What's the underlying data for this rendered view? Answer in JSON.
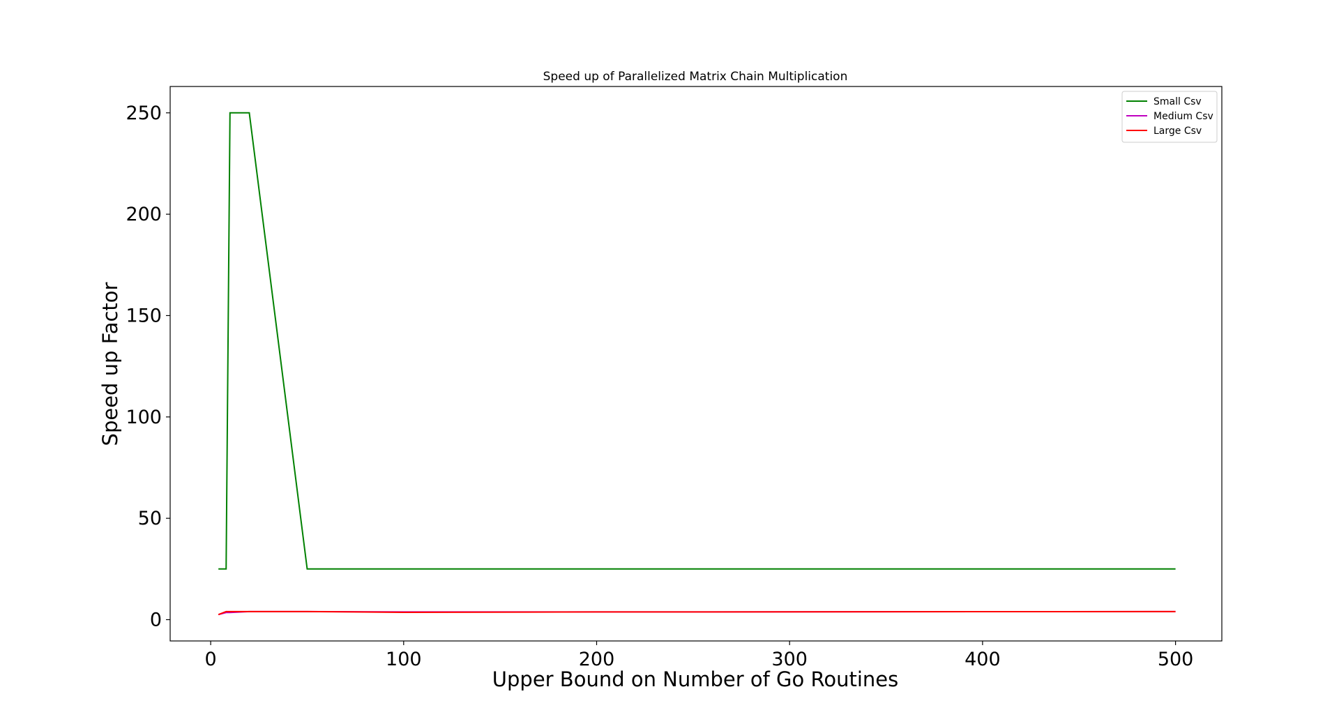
{
  "chart_data": {
    "type": "line",
    "title": "Speed up of Parallelized Matrix Chain Multiplication",
    "xlabel": "Upper Bound on Number of Go Routines",
    "ylabel": "Speed up Factor",
    "xlim": [
      -21,
      524
    ],
    "ylim": [
      -10.5,
      263
    ],
    "xticks": [
      0,
      100,
      200,
      300,
      400,
      500
    ],
    "xtick_labels": [
      "0",
      "100",
      "200",
      "300",
      "400",
      "500"
    ],
    "yticks": [
      0,
      50,
      100,
      150,
      200,
      250
    ],
    "ytick_labels": [
      "0",
      "50",
      "100",
      "150",
      "200",
      "250"
    ],
    "grid": false,
    "legend_position": "top-right",
    "series": [
      {
        "name": "Small Csv",
        "color": "#008000",
        "x": [
          4,
          8,
          10,
          20,
          50,
          100,
          200,
          500
        ],
        "y": [
          25,
          25,
          250,
          250,
          25,
          25,
          25,
          25
        ]
      },
      {
        "name": "Medium Csv",
        "color": "#bf00bf",
        "x": [
          4,
          8,
          10,
          20,
          50,
          100,
          200,
          500
        ],
        "y": [
          2.5,
          3.5,
          3.5,
          4,
          4,
          3.8,
          3.8,
          4
        ]
      },
      {
        "name": "Large Csv",
        "color": "#ff0000",
        "x": [
          4,
          8,
          10,
          20,
          50,
          100,
          200,
          500
        ],
        "y": [
          2.5,
          4,
          4,
          4,
          4,
          3.6,
          3.8,
          4
        ]
      }
    ]
  }
}
